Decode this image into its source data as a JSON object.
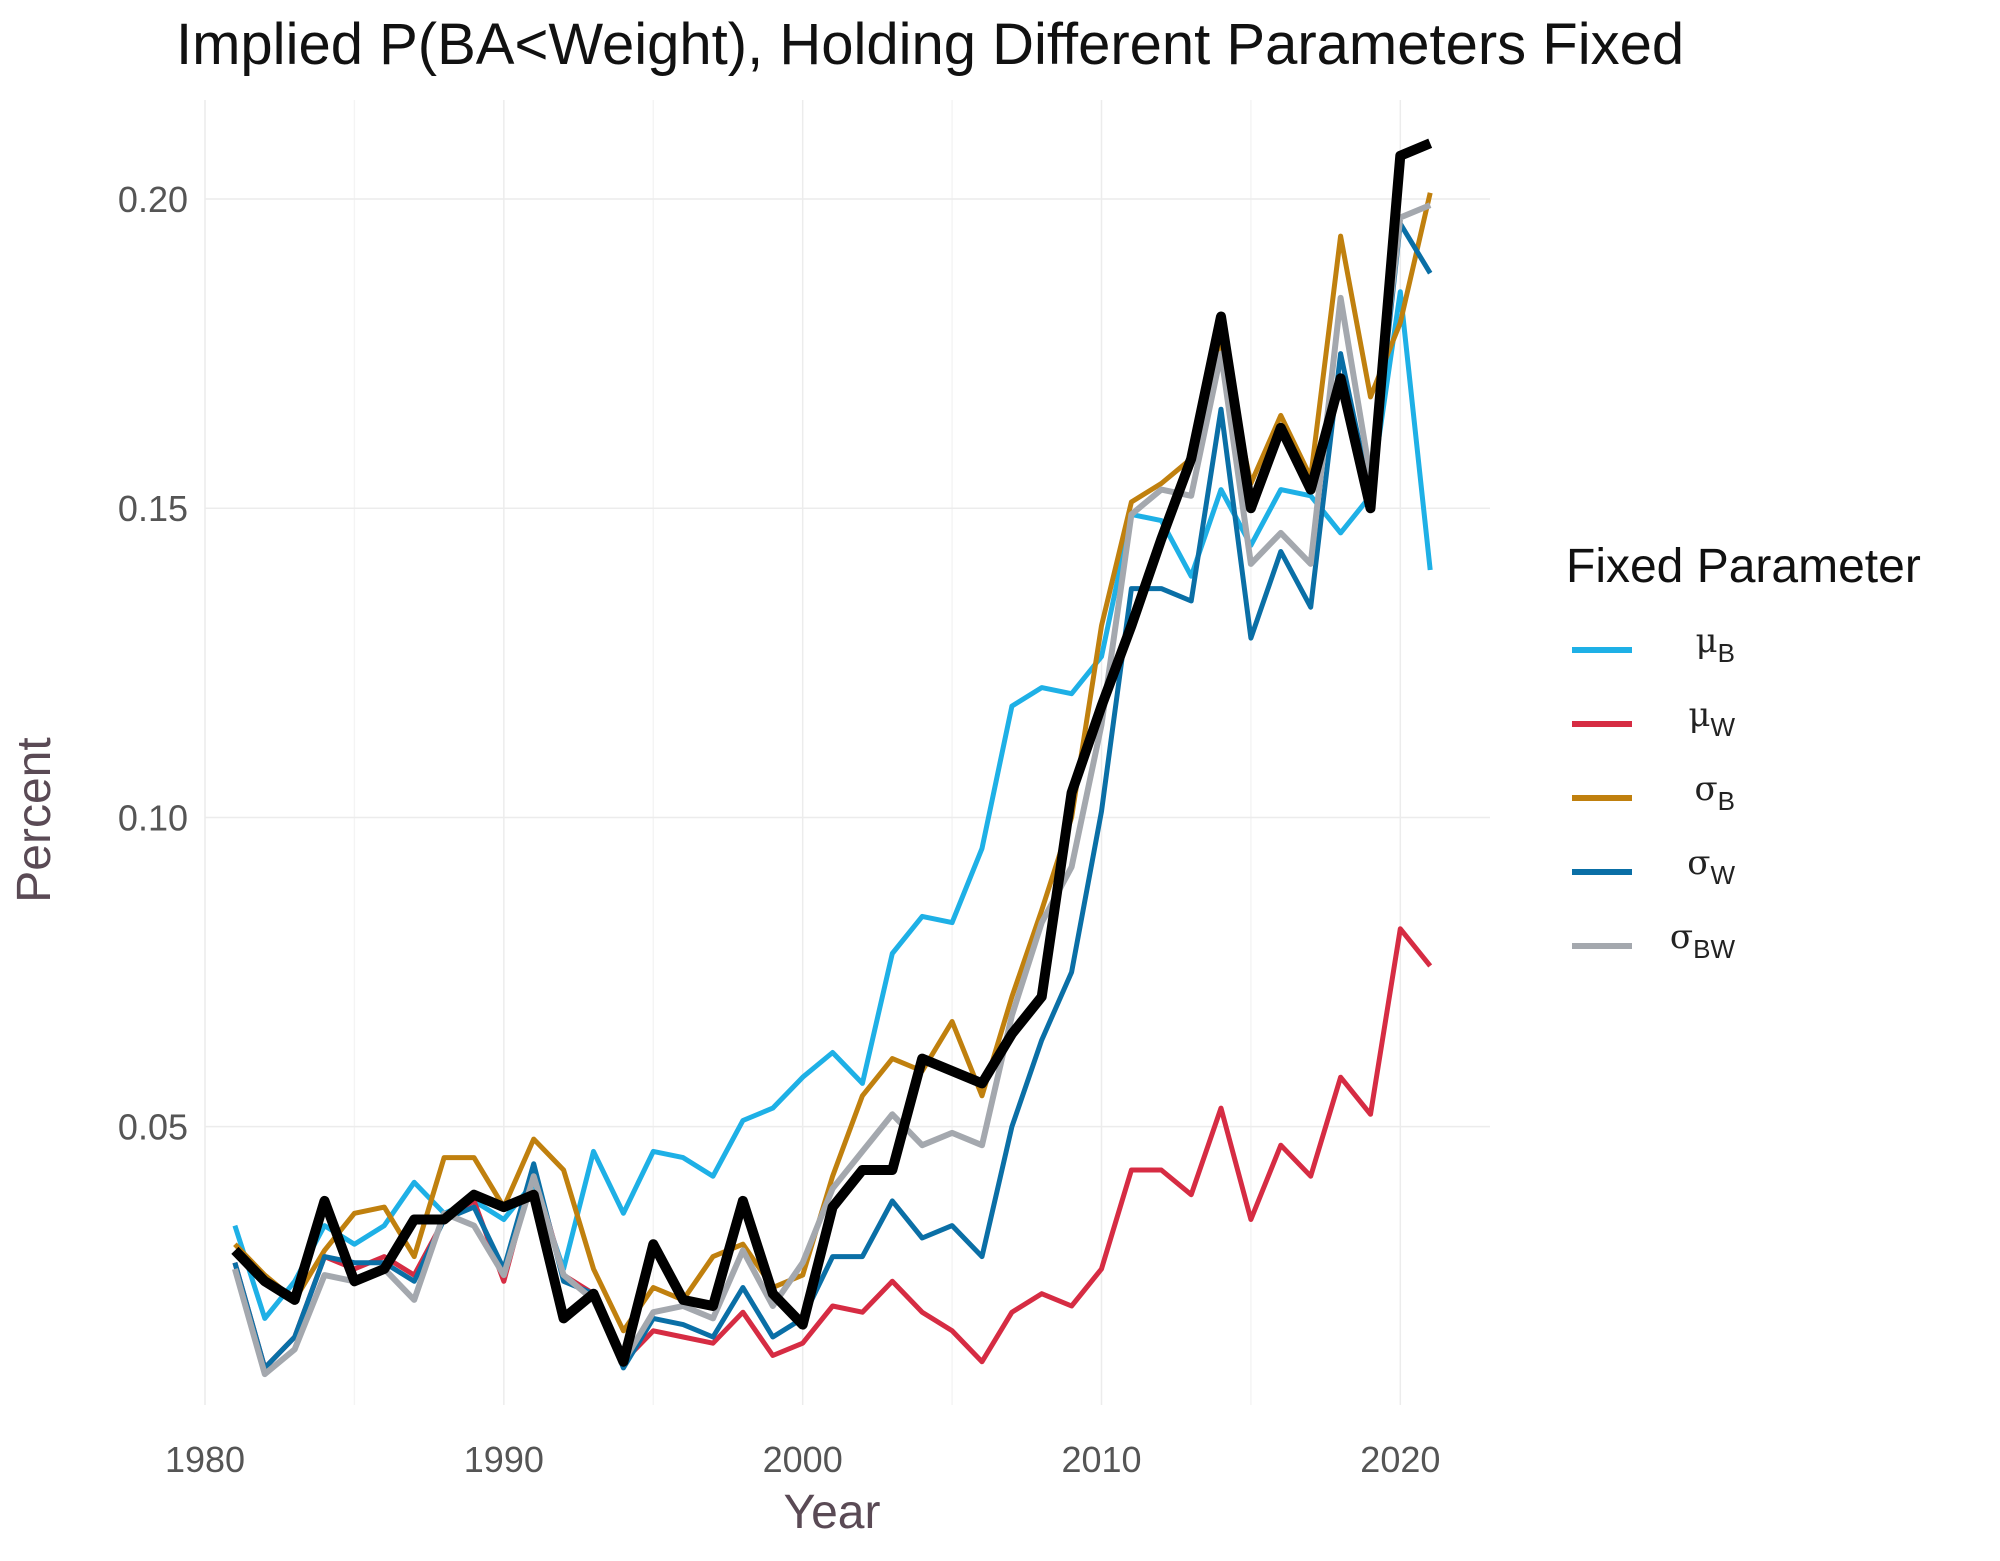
{
  "chart_data": {
    "type": "line",
    "title": "Implied P(BA<Weight), Holding Different Parameters Fixed",
    "xlabel": "Year",
    "ylabel": "Percent",
    "xlim": [
      1980,
      2023
    ],
    "ylim": [
      0.005,
      0.216
    ],
    "x_ticks": [
      "1980",
      "1990",
      "2000",
      "2010",
      "2020"
    ],
    "y_ticks": [
      "0.05",
      "0.10",
      "0.15",
      "0.20"
    ],
    "grid": true,
    "legend_position": "right",
    "legend_title": "Fixed Parameter",
    "x": [
      1981,
      1982,
      1983,
      1984,
      1985,
      1986,
      1987,
      1988,
      1989,
      1990,
      1991,
      1992,
      1993,
      1994,
      1995,
      1996,
      1997,
      1998,
      1999,
      2000,
      2001,
      2002,
      2003,
      2004,
      2005,
      2006,
      2007,
      2008,
      2009,
      2010,
      2011,
      2012,
      2013,
      2014,
      2015,
      2016,
      2017,
      2018,
      2019,
      2020,
      2021
    ],
    "series": [
      {
        "name": "μB",
        "symbol": "μ",
        "subscript": "B",
        "color": "#1eb0e6",
        "width": 5,
        "values": [
          0.034,
          0.019,
          0.025,
          0.034,
          0.031,
          0.034,
          0.041,
          0.036,
          0.038,
          0.035,
          0.041,
          0.027,
          0.046,
          0.036,
          0.046,
          0.045,
          0.042,
          0.051,
          0.053,
          0.058,
          0.062,
          0.057,
          0.078,
          0.084,
          0.083,
          0.095,
          0.118,
          0.121,
          0.12,
          0.126,
          0.149,
          0.148,
          0.139,
          0.153,
          0.144,
          0.153,
          0.152,
          0.146,
          0.152,
          0.185,
          0.14
        ]
      },
      {
        "name": "μW",
        "symbol": "μ",
        "subscript": "W",
        "color": "#d62c43",
        "width": 5,
        "values": [
          0.028,
          0.011,
          0.016,
          0.029,
          0.027,
          0.029,
          0.026,
          0.035,
          0.038,
          0.025,
          0.043,
          0.026,
          0.023,
          0.012,
          0.017,
          0.016,
          0.015,
          0.02,
          0.013,
          0.015,
          0.021,
          0.02,
          0.025,
          0.02,
          0.017,
          0.012,
          0.02,
          0.023,
          0.021,
          0.027,
          0.043,
          0.043,
          0.039,
          0.053,
          0.035,
          0.047,
          0.042,
          0.058,
          0.052,
          0.082,
          0.076
        ]
      },
      {
        "name": "σB",
        "symbol": "σ",
        "subscript": "B",
        "color": "#c0800e",
        "width": 5,
        "values": [
          0.031,
          0.026,
          0.022,
          0.03,
          0.036,
          0.037,
          0.029,
          0.045,
          0.045,
          0.037,
          0.048,
          0.043,
          0.027,
          0.017,
          0.024,
          0.022,
          0.029,
          0.031,
          0.024,
          0.026,
          0.042,
          0.055,
          0.061,
          0.059,
          0.067,
          0.055,
          0.071,
          0.085,
          0.1,
          0.131,
          0.151,
          0.154,
          0.158,
          0.177,
          0.154,
          0.165,
          0.155,
          0.194,
          0.168,
          0.18,
          0.201
        ]
      },
      {
        "name": "σW",
        "symbol": "σ",
        "subscript": "W",
        "color": "#0a6fa6",
        "width": 5,
        "values": [
          0.028,
          0.011,
          0.016,
          0.029,
          0.028,
          0.028,
          0.025,
          0.035,
          0.037,
          0.027,
          0.044,
          0.025,
          0.023,
          0.011,
          0.019,
          0.018,
          0.016,
          0.024,
          0.016,
          0.019,
          0.029,
          0.029,
          0.038,
          0.032,
          0.034,
          0.029,
          0.05,
          0.064,
          0.075,
          0.101,
          0.137,
          0.137,
          0.135,
          0.166,
          0.129,
          0.143,
          0.134,
          0.175,
          0.152,
          0.196,
          0.188
        ]
      },
      {
        "name": "σBW",
        "symbol": "σ",
        "subscript": "BW",
        "color": "#a4a8ae",
        "width": 6,
        "values": [
          0.027,
          0.01,
          0.014,
          0.026,
          0.025,
          0.027,
          0.022,
          0.036,
          0.034,
          0.026,
          0.042,
          0.026,
          0.022,
          0.012,
          0.02,
          0.021,
          0.019,
          0.03,
          0.021,
          0.028,
          0.04,
          0.046,
          0.052,
          0.047,
          0.049,
          0.047,
          0.068,
          0.083,
          0.092,
          0.115,
          0.149,
          0.153,
          0.152,
          0.175,
          0.141,
          0.146,
          0.141,
          0.184,
          0.155,
          0.197,
          0.199
        ]
      },
      {
        "name": "",
        "color": "#000000",
        "width": 10,
        "values": [
          0.03,
          0.025,
          0.022,
          0.038,
          0.025,
          0.027,
          0.035,
          0.035,
          0.039,
          0.037,
          0.039,
          0.019,
          0.023,
          0.012,
          0.031,
          0.022,
          0.021,
          0.038,
          0.023,
          0.018,
          0.037,
          0.043,
          0.043,
          0.061,
          0.059,
          0.057,
          0.065,
          0.071,
          0.104,
          0.118,
          0.131,
          0.145,
          0.158,
          0.181,
          0.15,
          0.163,
          0.153,
          0.171,
          0.15,
          0.207,
          0.209
        ]
      }
    ]
  }
}
